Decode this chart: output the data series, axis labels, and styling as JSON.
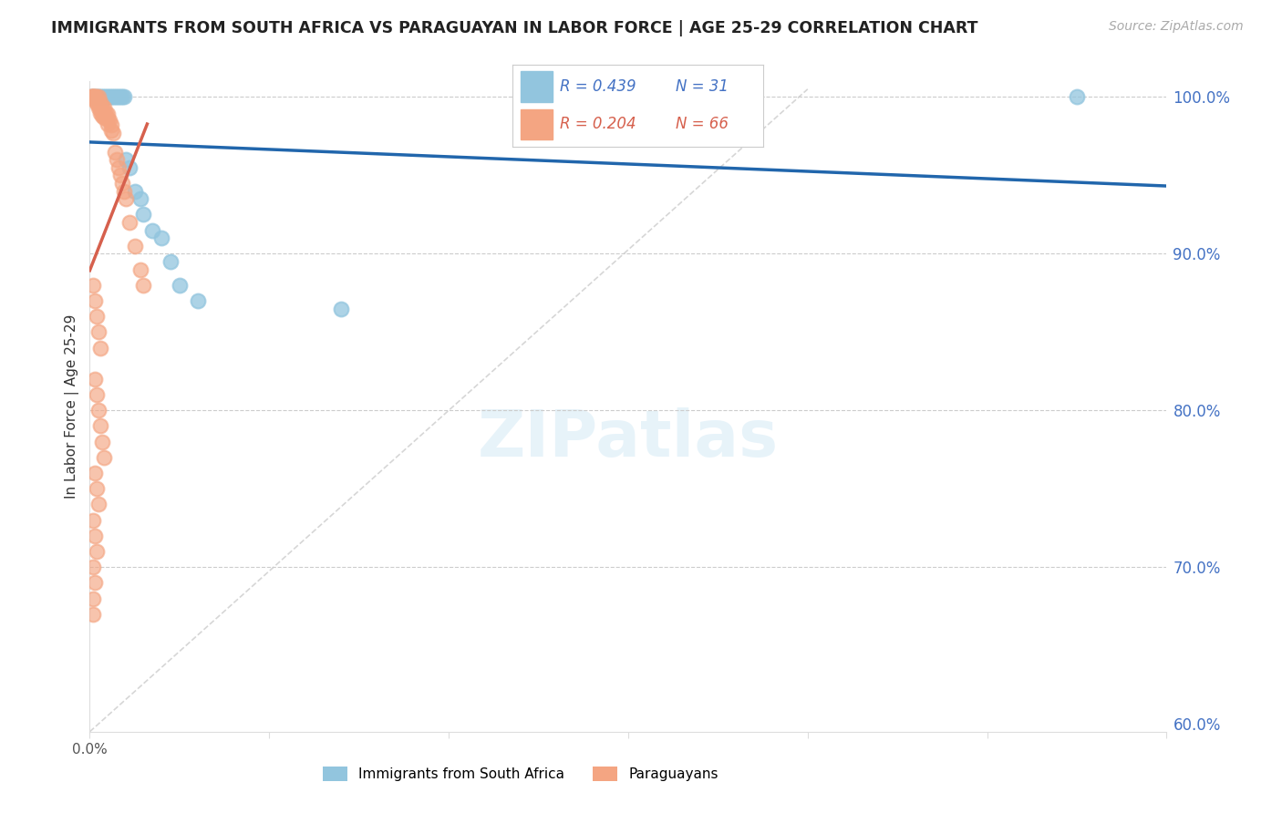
{
  "title": "IMMIGRANTS FROM SOUTH AFRICA VS PARAGUAYAN IN LABOR FORCE | AGE 25-29 CORRELATION CHART",
  "source": "Source: ZipAtlas.com",
  "ylabel": "In Labor Force | Age 25-29",
  "legend_blue_r": "R = 0.439",
  "legend_blue_n": "N = 31",
  "legend_pink_r": "R = 0.204",
  "legend_pink_n": "N = 66",
  "legend_blue_label": "Immigrants from South Africa",
  "legend_pink_label": "Paraguayans",
  "xlim": [
    0.0,
    0.6
  ],
  "ylim": [
    0.595,
    1.01
  ],
  "xticks": [
    0.0,
    0.1,
    0.2,
    0.3,
    0.4,
    0.5,
    0.6
  ],
  "yticks_right": [
    0.6,
    0.7,
    0.8,
    0.9,
    1.0
  ],
  "blue_color": "#92c5de",
  "pink_color": "#f4a582",
  "trend_blue_color": "#2166ac",
  "trend_pink_color": "#d6604d",
  "blue_x": [
    0.001,
    0.002,
    0.003,
    0.004,
    0.005,
    0.006,
    0.007,
    0.008,
    0.009,
    0.01,
    0.011,
    0.012,
    0.013,
    0.014,
    0.015,
    0.016,
    0.017,
    0.018,
    0.019,
    0.02,
    0.022,
    0.025,
    0.028,
    0.03,
    0.035,
    0.04,
    0.045,
    0.05,
    0.06,
    0.14,
    0.55
  ],
  "blue_y": [
    1.0,
    1.0,
    1.0,
    1.0,
    1.0,
    1.0,
    1.0,
    1.0,
    1.0,
    1.0,
    1.0,
    1.0,
    1.0,
    1.0,
    1.0,
    1.0,
    1.0,
    1.0,
    1.0,
    0.96,
    0.955,
    0.94,
    0.935,
    0.925,
    0.915,
    0.91,
    0.895,
    0.88,
    0.87,
    0.865,
    1.0
  ],
  "pink_x": [
    0.001,
    0.001,
    0.002,
    0.002,
    0.002,
    0.003,
    0.003,
    0.003,
    0.004,
    0.004,
    0.004,
    0.005,
    0.005,
    0.005,
    0.005,
    0.006,
    0.006,
    0.006,
    0.006,
    0.007,
    0.007,
    0.007,
    0.008,
    0.008,
    0.008,
    0.009,
    0.009,
    0.01,
    0.01,
    0.01,
    0.011,
    0.012,
    0.012,
    0.013,
    0.014,
    0.015,
    0.016,
    0.017,
    0.018,
    0.019,
    0.02,
    0.022,
    0.025,
    0.028,
    0.03,
    0.002,
    0.003,
    0.004,
    0.005,
    0.006,
    0.003,
    0.004,
    0.005,
    0.006,
    0.007,
    0.008,
    0.003,
    0.004,
    0.005,
    0.002,
    0.003,
    0.004,
    0.002,
    0.003,
    0.002,
    0.002
  ],
  "pink_y": [
    1.0,
    1.0,
    1.0,
    1.0,
    1.0,
    1.0,
    1.0,
    0.998,
    1.0,
    0.998,
    0.996,
    1.0,
    0.997,
    0.995,
    0.993,
    0.997,
    0.994,
    0.992,
    0.99,
    0.994,
    0.991,
    0.988,
    0.993,
    0.99,
    0.987,
    0.99,
    0.987,
    0.989,
    0.986,
    0.983,
    0.985,
    0.982,
    0.979,
    0.977,
    0.965,
    0.96,
    0.955,
    0.95,
    0.945,
    0.94,
    0.935,
    0.92,
    0.905,
    0.89,
    0.88,
    0.88,
    0.87,
    0.86,
    0.85,
    0.84,
    0.82,
    0.81,
    0.8,
    0.79,
    0.78,
    0.77,
    0.76,
    0.75,
    0.74,
    0.73,
    0.72,
    0.71,
    0.7,
    0.69,
    0.68,
    0.67
  ]
}
